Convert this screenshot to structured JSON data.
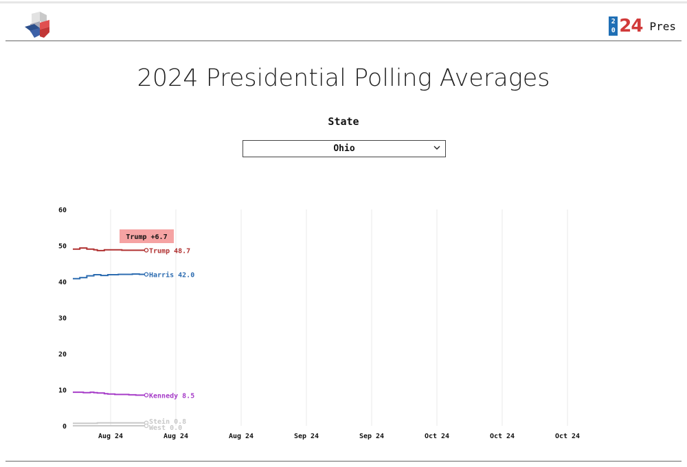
{
  "header": {
    "brand_top_digit": "2",
    "brand_bottom_digit": "0",
    "brand_number": "24",
    "brand_text": "Pres"
  },
  "page": {
    "title": "2024 Presidential Polling Averages"
  },
  "state_selector": {
    "label": "State",
    "selected": "Ohio"
  },
  "chart_data": {
    "type": "line",
    "title": "",
    "xlabel": "",
    "ylabel": "",
    "ylim": [
      0,
      60
    ],
    "y_ticks": [
      0,
      10,
      20,
      30,
      40,
      50,
      60
    ],
    "x_tick_labels": [
      "Aug 24",
      "Aug 24",
      "Aug 24",
      "Sep 24",
      "Sep 24",
      "Oct 24",
      "Oct 24",
      "Oct 24"
    ],
    "x_count": 22,
    "grid": true,
    "leader_label": "Trump +6.7",
    "series": [
      {
        "name": "Trump",
        "end_label": "Trump 48.7",
        "color": "#b03030",
        "values": [
          49.0,
          49.0,
          49.3,
          49.3,
          49.0,
          49.0,
          48.8,
          48.6,
          48.6,
          48.8,
          48.8,
          48.8,
          48.8,
          48.8,
          48.7,
          48.7,
          48.7,
          48.7,
          48.7,
          48.7,
          48.7,
          48.7
        ]
      },
      {
        "name": "Harris",
        "end_label": "Harris 42.0",
        "color": "#2b6bb0",
        "values": [
          40.8,
          40.8,
          41.1,
          41.1,
          41.6,
          41.6,
          41.9,
          41.9,
          41.7,
          41.7,
          41.9,
          41.9,
          41.9,
          42.0,
          42.0,
          42.0,
          42.0,
          42.1,
          42.1,
          42.0,
          42.0,
          42.0
        ]
      },
      {
        "name": "Kennedy",
        "end_label": "Kennedy 8.5",
        "color": "#a63cc8",
        "values": [
          9.3,
          9.3,
          9.3,
          9.2,
          9.2,
          9.3,
          9.2,
          9.1,
          9.1,
          8.9,
          8.8,
          8.8,
          8.7,
          8.7,
          8.7,
          8.7,
          8.6,
          8.6,
          8.5,
          8.5,
          8.5,
          8.5
        ]
      },
      {
        "name": "Stein",
        "end_label": "Stein 0.8",
        "color": "#c8c8c8",
        "values": [
          0.7,
          0.7,
          0.7,
          0.7,
          0.7,
          0.7,
          0.7,
          0.8,
          0.8,
          0.8,
          0.8,
          0.8,
          0.8,
          0.8,
          0.8,
          0.8,
          0.8,
          0.8,
          0.8,
          0.8,
          0.8,
          0.8
        ]
      },
      {
        "name": "West",
        "end_label": "West 0.0",
        "color": "#c8c8c8",
        "values": [
          0.0,
          0.0,
          0.0,
          0.0,
          0.0,
          0.0,
          0.0,
          0.0,
          0.0,
          0.0,
          0.0,
          0.0,
          0.0,
          0.0,
          0.0,
          0.0,
          0.0,
          0.0,
          0.0,
          0.0,
          0.0,
          0.0
        ]
      }
    ]
  }
}
